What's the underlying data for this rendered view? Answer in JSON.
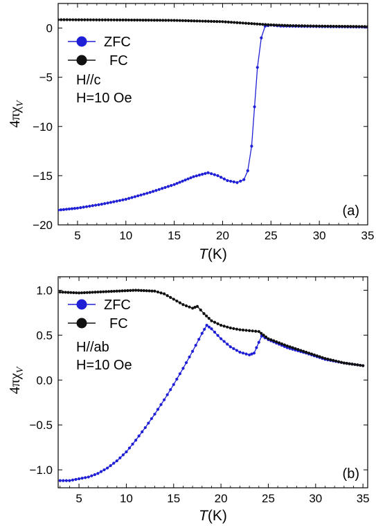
{
  "chart_data": [
    {
      "type": "line",
      "panel_label": "(a)",
      "xlabel_italic": "T",
      "xlabel_unit": "(K)",
      "ylabel_main": "4πχ",
      "ylabel_sub": "V",
      "xlim": [
        3,
        35
      ],
      "ylim": [
        -20,
        2.5
      ],
      "xticks": [
        5,
        10,
        15,
        20,
        25,
        30,
        35
      ],
      "yticks": [
        -20,
        -15,
        -10,
        -5,
        0
      ],
      "annotations": [
        "H//c",
        "H=10 Oe"
      ],
      "legend_position": "top-left",
      "series": [
        {
          "name": "ZFC",
          "color": "#1f1fd6",
          "points": [
            [
              3,
              -18.5
            ],
            [
              5,
              -18.3
            ],
            [
              7.5,
              -17.9
            ],
            [
              10,
              -17.4
            ],
            [
              12.5,
              -16.7
            ],
            [
              15,
              -15.9
            ],
            [
              17,
              -15.1
            ],
            [
              18.5,
              -14.7
            ],
            [
              19.5,
              -15.0
            ],
            [
              20.5,
              -15.5
            ],
            [
              21.5,
              -15.7
            ],
            [
              22.2,
              -15.4
            ],
            [
              22.6,
              -14.5
            ],
            [
              23.0,
              -12.0
            ],
            [
              23.3,
              -8.0
            ],
            [
              23.6,
              -4.0
            ],
            [
              24.0,
              -1.0
            ],
            [
              24.4,
              0.2
            ],
            [
              25,
              0.3
            ],
            [
              26,
              0.2
            ],
            [
              30,
              0.15
            ],
            [
              35,
              0.1
            ]
          ]
        },
        {
          "name": "FC",
          "color": "#111111",
          "points": [
            [
              3,
              0.85
            ],
            [
              10,
              0.82
            ],
            [
              15,
              0.78
            ],
            [
              20,
              0.65
            ],
            [
              23,
              0.45
            ],
            [
              25,
              0.32
            ],
            [
              27,
              0.25
            ],
            [
              30,
              0.2
            ],
            [
              35,
              0.15
            ]
          ]
        }
      ]
    },
    {
      "type": "line",
      "panel_label": "(b)",
      "xlabel_italic": "T",
      "xlabel_unit": "(K)",
      "ylabel_main": "4πχ",
      "ylabel_sub": "V",
      "xlim": [
        2.8,
        35.5
      ],
      "ylim": [
        -1.2,
        1.15
      ],
      "xticks": [
        5,
        10,
        15,
        20,
        25,
        30,
        35
      ],
      "yticks": [
        -1.0,
        -0.5,
        0.0,
        0.5,
        1.0
      ],
      "ytick_labels": [
        "−1.0",
        "−0.5",
        "0.0",
        "0.5",
        "1.0"
      ],
      "annotations": [
        "H//ab",
        "H=10 Oe"
      ],
      "legend_position": "top-left",
      "series": [
        {
          "name": "ZFC",
          "color": "#1f1fd6",
          "points": [
            [
              3,
              -1.12
            ],
            [
              4,
              -1.12
            ],
            [
              5,
              -1.1
            ],
            [
              6,
              -1.08
            ],
            [
              7,
              -1.04
            ],
            [
              8,
              -0.98
            ],
            [
              9,
              -0.9
            ],
            [
              10,
              -0.8
            ],
            [
              11,
              -0.67
            ],
            [
              12,
              -0.53
            ],
            [
              13,
              -0.38
            ],
            [
              14,
              -0.22
            ],
            [
              15,
              -0.05
            ],
            [
              16,
              0.13
            ],
            [
              17,
              0.32
            ],
            [
              18,
              0.52
            ],
            [
              18.5,
              0.61
            ],
            [
              19,
              0.57
            ],
            [
              20,
              0.46
            ],
            [
              21,
              0.37
            ],
            [
              22,
              0.31
            ],
            [
              23,
              0.28
            ],
            [
              23.5,
              0.3
            ],
            [
              24,
              0.42
            ],
            [
              24.3,
              0.49
            ],
            [
              25,
              0.45
            ],
            [
              27,
              0.36
            ],
            [
              29,
              0.3
            ],
            [
              31,
              0.23
            ],
            [
              33,
              0.19
            ],
            [
              35,
              0.16
            ]
          ]
        },
        {
          "name": "FC",
          "color": "#111111",
          "points": [
            [
              3,
              0.98
            ],
            [
              5,
              0.97
            ],
            [
              7,
              0.98
            ],
            [
              9,
              0.99
            ],
            [
              11,
              1.0
            ],
            [
              13,
              0.99
            ],
            [
              14,
              0.96
            ],
            [
              15,
              0.9
            ],
            [
              16,
              0.84
            ],
            [
              17,
              0.8
            ],
            [
              17.5,
              0.82
            ],
            [
              18.2,
              0.74
            ],
            [
              19,
              0.66
            ],
            [
              20,
              0.61
            ],
            [
              21,
              0.58
            ],
            [
              22,
              0.56
            ],
            [
              23,
              0.55
            ],
            [
              24,
              0.54
            ],
            [
              24.5,
              0.5
            ],
            [
              25,
              0.46
            ],
            [
              27,
              0.38
            ],
            [
              29,
              0.31
            ],
            [
              31,
              0.24
            ],
            [
              33,
              0.19
            ],
            [
              35,
              0.16
            ]
          ]
        }
      ]
    }
  ]
}
